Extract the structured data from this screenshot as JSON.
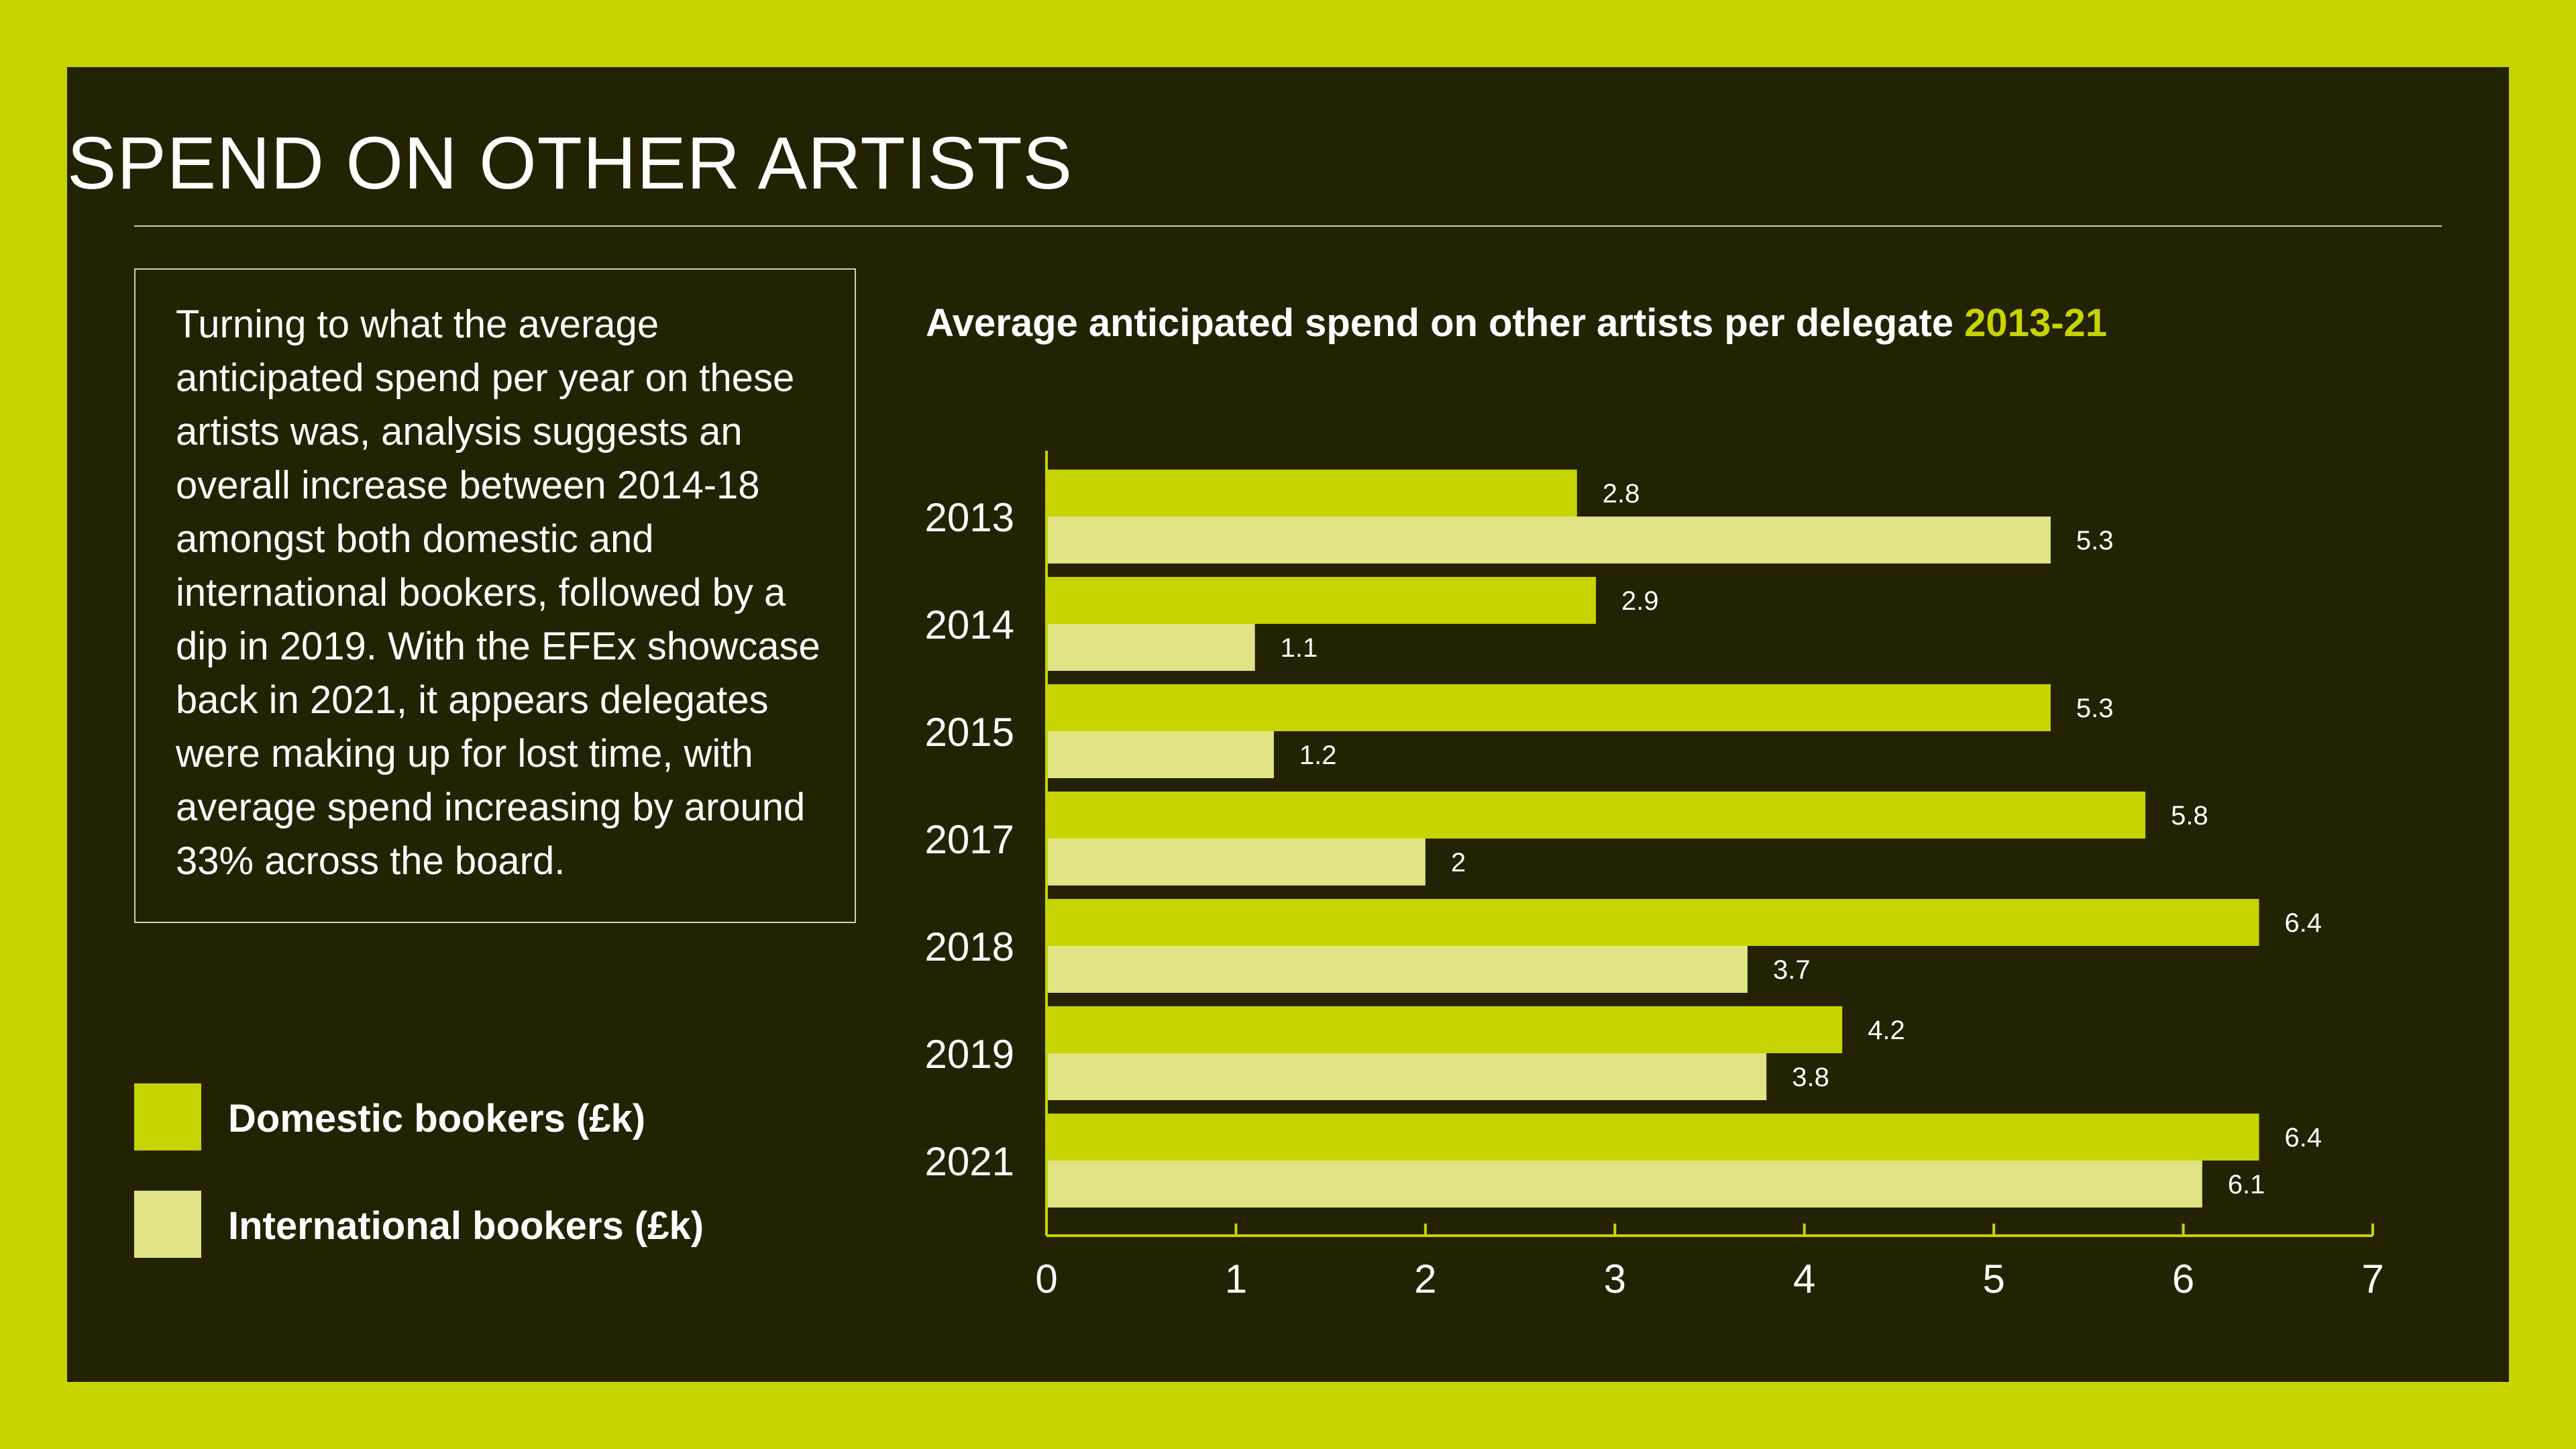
{
  "page": {
    "title": "SPEND ON OTHER ARTISTS",
    "body": "Turning to what the average anticipated spend per year on these artists was, analysis suggests an overall increase between 2014-18 amongst both domestic and international bookers, followed by a dip in 2019. With the EFEx showcase back in 2021, it appears delegates were making up for lost time, with average spend increasing by around 33% across the board."
  },
  "colors": {
    "background": "#232304",
    "border": "#c8d400",
    "domestic": "#c8d400",
    "international": "#e1e485",
    "text": "#ffffff"
  },
  "legend": [
    {
      "label": "Domestic bookers (£k)",
      "color": "#c8d400"
    },
    {
      "label": "International bookers (£k)",
      "color": "#e1e485"
    }
  ],
  "chart_data": {
    "type": "bar",
    "orientation": "horizontal",
    "title": "Average anticipated spend on other artists per delegate",
    "title_period": "2013-21",
    "categories": [
      "2013",
      "2014",
      "2015",
      "2017",
      "2018",
      "2019",
      "2021"
    ],
    "series": [
      {
        "name": "Domestic bookers (£k)",
        "values": [
          2.8,
          2.9,
          5.3,
          5.8,
          6.4,
          4.2,
          6.4
        ],
        "labels": [
          "2.8",
          "2.9",
          "5.3",
          "5.8",
          "6.4",
          "4.2",
          "6.4"
        ]
      },
      {
        "name": "International bookers (£k)",
        "values": [
          5.3,
          1.1,
          1.2,
          2,
          3.7,
          3.8,
          6.1
        ],
        "labels": [
          "5.3",
          "1.1",
          "1.2",
          "2",
          "3.7",
          "3.8",
          "6.1"
        ]
      }
    ],
    "xlim": [
      0,
      7
    ],
    "xticks": [
      "0",
      "1",
      "2",
      "3",
      "4",
      "5",
      "6",
      "7"
    ],
    "xlabel": "",
    "ylabel": "",
    "grid": false,
    "legend_position": "left"
  }
}
